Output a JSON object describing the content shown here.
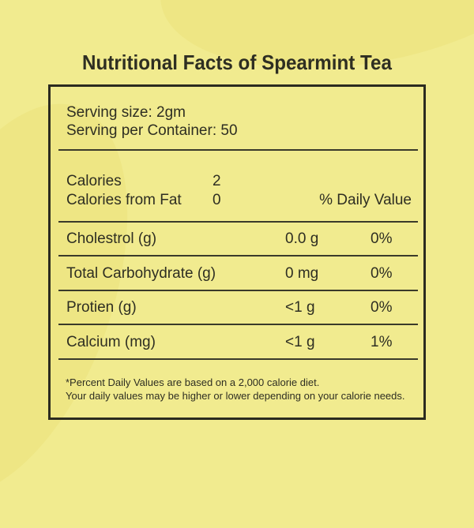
{
  "title": "Nutritional Facts of Spearmint Tea",
  "serving": {
    "size": "Serving size: 2gm",
    "per_container": "Serving per Container: 50"
  },
  "calories": {
    "label": "Calories",
    "value": "2",
    "fat_label": "Calories from Fat",
    "fat_value": "0"
  },
  "daily_value_header": "% Daily Value",
  "rows": [
    {
      "name": "Cholestrol (g)",
      "amount": "0.0 g",
      "dv": "0%"
    },
    {
      "name": "Total Carbohydrate (g)",
      "amount": "0 mg",
      "dv": "0%"
    },
    {
      "name": "Protien (g)",
      "amount": "<1 g",
      "dv": "0%"
    },
    {
      "name": "Calcium (mg)",
      "amount": "<1 g",
      "dv": "1%"
    }
  ],
  "footnote": [
    "*Percent Daily Values are based on a 2,000 calorie diet.",
    "Your daily values may be higher or lower depending on your calorie needs."
  ],
  "colors": {
    "background": "#f1eb8f",
    "text": "#2e2e22",
    "border": "#2b2b1f"
  }
}
